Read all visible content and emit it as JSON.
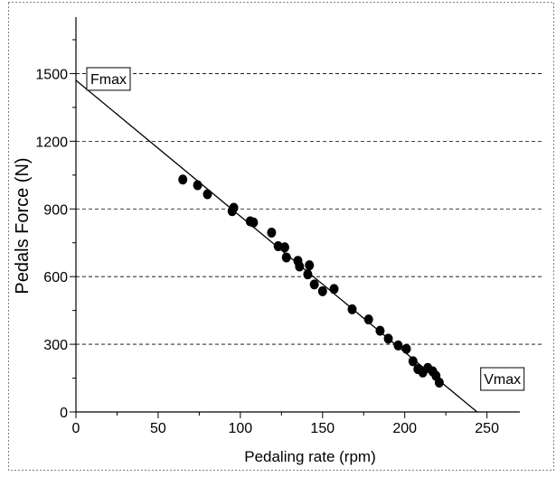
{
  "chart_data": {
    "type": "scatter",
    "xlabel": "Pedaling rate (rpm)",
    "ylabel": "Pedals Force (N)",
    "xlim": [
      0,
      270
    ],
    "ylim": [
      0,
      1750
    ],
    "x_ticks": [
      0,
      50,
      100,
      150,
      200,
      250
    ],
    "y_ticks": [
      0,
      300,
      600,
      900,
      1200,
      1500
    ],
    "grid": "horizontal dashed lines at y ticks",
    "annotations": [
      {
        "label": "Fmax",
        "x": 0,
        "y": 1470
      },
      {
        "label": "Vmax",
        "x": 244,
        "y": 0
      }
    ],
    "trend_line": {
      "x": [
        0,
        244
      ],
      "y": [
        1470,
        0
      ]
    },
    "points": [
      {
        "x": 65,
        "y": 1030
      },
      {
        "x": 74,
        "y": 1005
      },
      {
        "x": 80,
        "y": 965
      },
      {
        "x": 95,
        "y": 890
      },
      {
        "x": 96,
        "y": 905
      },
      {
        "x": 106,
        "y": 845
      },
      {
        "x": 108,
        "y": 840
      },
      {
        "x": 119,
        "y": 795
      },
      {
        "x": 123,
        "y": 735
      },
      {
        "x": 127,
        "y": 730
      },
      {
        "x": 128,
        "y": 685
      },
      {
        "x": 135,
        "y": 670
      },
      {
        "x": 136,
        "y": 645
      },
      {
        "x": 141,
        "y": 610
      },
      {
        "x": 142,
        "y": 650
      },
      {
        "x": 145,
        "y": 565
      },
      {
        "x": 150,
        "y": 535
      },
      {
        "x": 157,
        "y": 545
      },
      {
        "x": 168,
        "y": 455
      },
      {
        "x": 178,
        "y": 410
      },
      {
        "x": 185,
        "y": 360
      },
      {
        "x": 190,
        "y": 325
      },
      {
        "x": 196,
        "y": 295
      },
      {
        "x": 201,
        "y": 280
      },
      {
        "x": 205,
        "y": 225
      },
      {
        "x": 208,
        "y": 190
      },
      {
        "x": 211,
        "y": 175
      },
      {
        "x": 214,
        "y": 195
      },
      {
        "x": 217,
        "y": 180
      },
      {
        "x": 219,
        "y": 160
      },
      {
        "x": 221,
        "y": 130
      }
    ]
  }
}
